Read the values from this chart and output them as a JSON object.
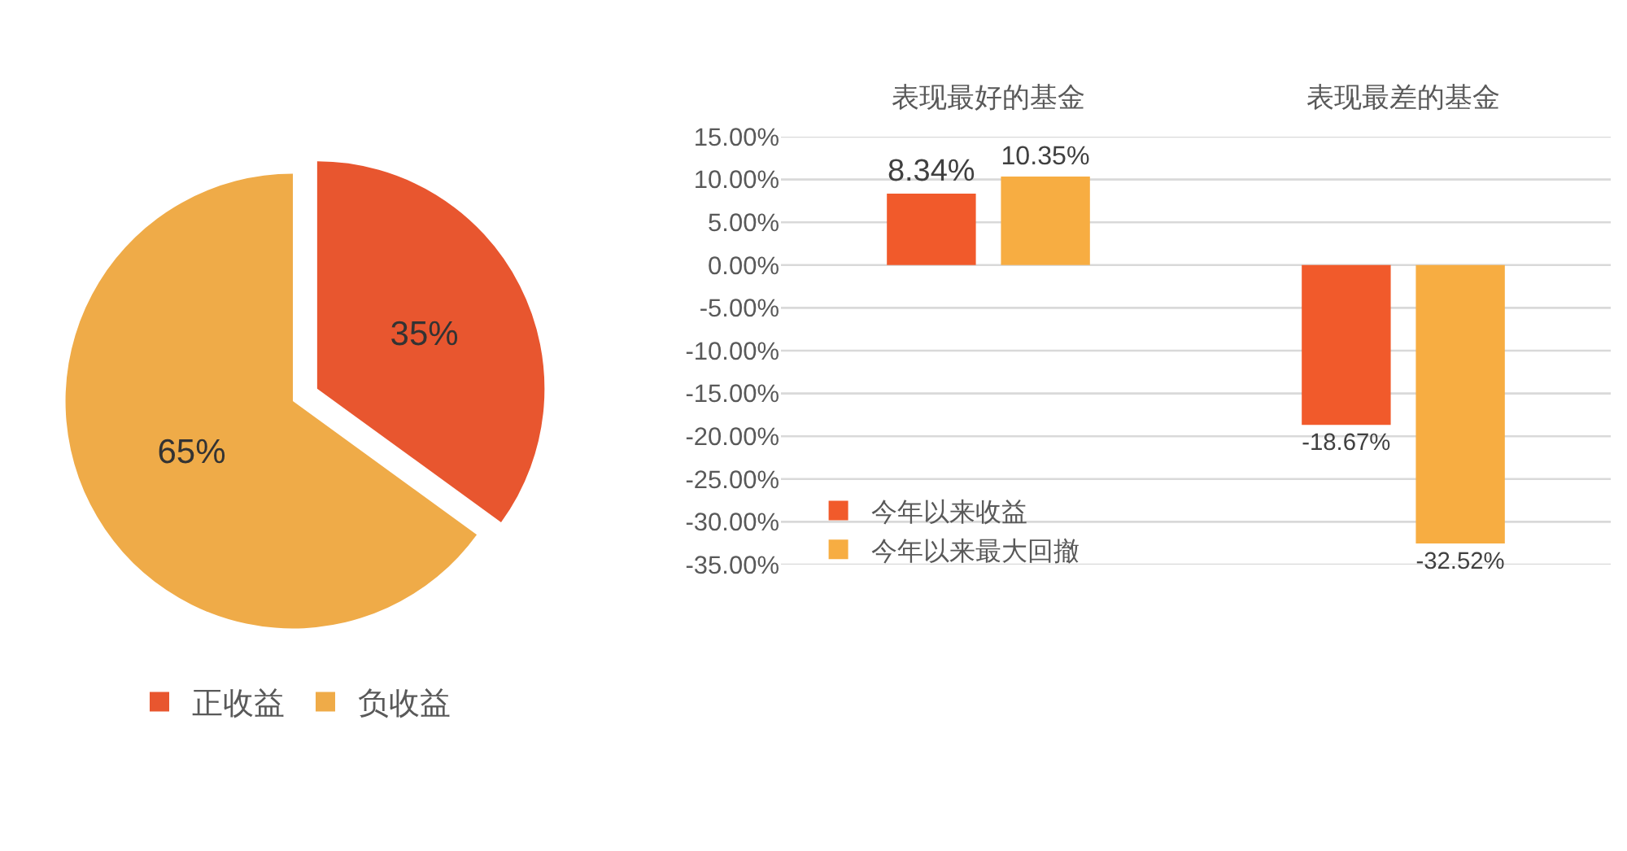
{
  "chart_data": [
    {
      "type": "pie",
      "categories": [
        "正收益",
        "负收益"
      ],
      "values": [
        35,
        65
      ],
      "value_labels": [
        "35%",
        "65%"
      ],
      "colors": [
        "#e8562f",
        "#efab48"
      ],
      "legend": "bottom"
    },
    {
      "type": "bar",
      "categories": [
        "表现最好的基金",
        "表现最差的基金"
      ],
      "series": [
        {
          "name": "今年以来收益",
          "color": "#f15a2b",
          "values": [
            8.34,
            -18.67
          ],
          "value_labels": [
            "8.34%",
            "-18.67%"
          ]
        },
        {
          "name": "今年以来最大回撤",
          "color": "#f7ad42",
          "values": [
            10.35,
            -32.52
          ],
          "value_labels": [
            "10.35%",
            "-32.52%"
          ]
        }
      ],
      "ylim": [
        -35,
        15
      ],
      "yticks": [
        {
          "value": 15,
          "label": "15.00%"
        },
        {
          "value": 10,
          "label": "10.00%"
        },
        {
          "value": 5,
          "label": "5.00%"
        },
        {
          "value": 0,
          "label": "0.00%"
        },
        {
          "value": -5,
          "label": "-5.00%"
        },
        {
          "value": -10,
          "label": "-10.00%"
        },
        {
          "value": -15,
          "label": "-15.00%"
        },
        {
          "value": -20,
          "label": "-20.00%"
        },
        {
          "value": -25,
          "label": "-25.00%"
        },
        {
          "value": -30,
          "label": "-30.00%"
        },
        {
          "value": -35,
          "label": "-35.00%"
        }
      ],
      "grid": "y",
      "legend": "bottom left"
    }
  ]
}
